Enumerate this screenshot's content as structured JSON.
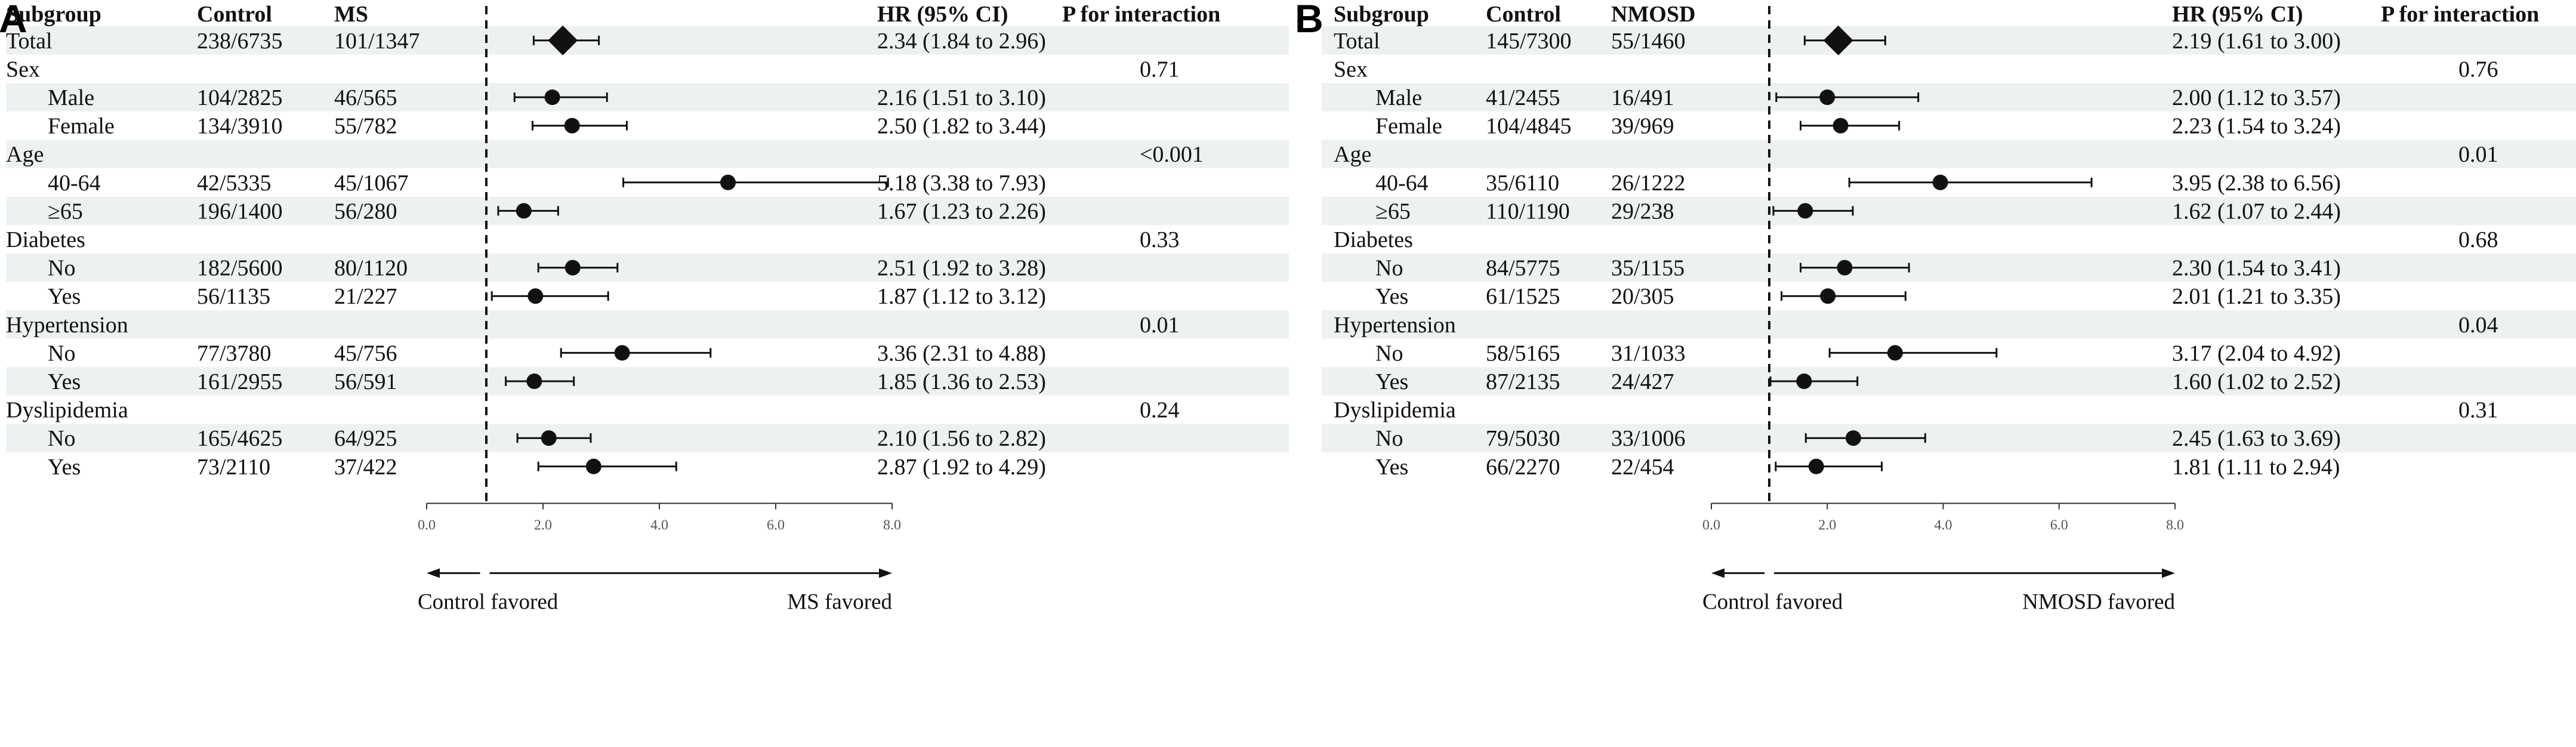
{
  "headers": [
    "Subgroup",
    "Control",
    "HR (95% CI)",
    "P for interaction"
  ],
  "chart_data": [
    {
      "type": "forest",
      "panel": "A",
      "exposure_label": "MS",
      "x_ticks": [
        "0.0",
        "2.0",
        "4.0",
        "6.0",
        "8.0"
      ],
      "xlim": [
        0,
        8
      ],
      "reference_line": 1,
      "left_label": "Control favored",
      "right_label": "MS favored",
      "rows": [
        {
          "label": "Total",
          "indent": false,
          "control": "238/6735",
          "exposure": "101/1347",
          "hr_text": "2.34 (1.84 to 2.96)",
          "hr": 2.34,
          "lo": 1.84,
          "hi": 2.96,
          "marker": "diamond",
          "p": ""
        },
        {
          "label": "Sex",
          "indent": false,
          "control": "",
          "exposure": "",
          "hr_text": "",
          "p": "0.71"
        },
        {
          "label": "Male",
          "indent": true,
          "control": "104/2825",
          "exposure": "46/565",
          "hr_text": "2.16 (1.51 to 3.10)",
          "hr": 2.16,
          "lo": 1.51,
          "hi": 3.1,
          "marker": "circle",
          "p": ""
        },
        {
          "label": "Female",
          "indent": true,
          "control": "134/3910",
          "exposure": "55/782",
          "hr_text": "2.50 (1.82 to 3.44)",
          "hr": 2.5,
          "lo": 1.82,
          "hi": 3.44,
          "marker": "circle",
          "p": ""
        },
        {
          "label": "Age",
          "indent": false,
          "control": "",
          "exposure": "",
          "hr_text": "",
          "p": "<0.001"
        },
        {
          "label": "40-64",
          "indent": true,
          "control": "42/5335",
          "exposure": "45/1067",
          "hr_text": "5.18 (3.38 to 7.93)",
          "hr": 5.18,
          "lo": 3.38,
          "hi": 7.93,
          "marker": "circle",
          "p": ""
        },
        {
          "label": "≥65",
          "indent": true,
          "control": "196/1400",
          "exposure": "56/280",
          "hr_text": "1.67 (1.23 to 2.26)",
          "hr": 1.67,
          "lo": 1.23,
          "hi": 2.26,
          "marker": "circle",
          "p": ""
        },
        {
          "label": "Diabetes",
          "indent": false,
          "control": "",
          "exposure": "",
          "hr_text": "",
          "p": "0.33"
        },
        {
          "label": "No",
          "indent": true,
          "control": "182/5600",
          "exposure": "80/1120",
          "hr_text": "2.51 (1.92 to 3.28)",
          "hr": 2.51,
          "lo": 1.92,
          "hi": 3.28,
          "marker": "circle",
          "p": ""
        },
        {
          "label": "Yes",
          "indent": true,
          "control": "56/1135",
          "exposure": "21/227",
          "hr_text": "1.87 (1.12 to 3.12)",
          "hr": 1.87,
          "lo": 1.12,
          "hi": 3.12,
          "marker": "circle",
          "p": ""
        },
        {
          "label": "Hypertension",
          "indent": false,
          "control": "",
          "exposure": "",
          "hr_text": "",
          "p": "0.01"
        },
        {
          "label": "No",
          "indent": true,
          "control": "77/3780",
          "exposure": "45/756",
          "hr_text": "3.36 (2.31 to 4.88)",
          "hr": 3.36,
          "lo": 2.31,
          "hi": 4.88,
          "marker": "circle",
          "p": ""
        },
        {
          "label": "Yes",
          "indent": true,
          "control": "161/2955",
          "exposure": "56/591",
          "hr_text": "1.85 (1.36 to 2.53)",
          "hr": 1.85,
          "lo": 1.36,
          "hi": 2.53,
          "marker": "circle",
          "p": ""
        },
        {
          "label": "Dyslipidemia",
          "indent": false,
          "control": "",
          "exposure": "",
          "hr_text": "",
          "p": "0.24"
        },
        {
          "label": "No",
          "indent": true,
          "control": "165/4625",
          "exposure": "64/925",
          "hr_text": "2.10 (1.56 to 2.82)",
          "hr": 2.1,
          "lo": 1.56,
          "hi": 2.82,
          "marker": "circle",
          "p": ""
        },
        {
          "label": "Yes",
          "indent": true,
          "control": "73/2110",
          "exposure": "37/422",
          "hr_text": "2.87 (1.92 to 4.29)",
          "hr": 2.87,
          "lo": 1.92,
          "hi": 4.29,
          "marker": "circle",
          "p": ""
        }
      ]
    },
    {
      "type": "forest",
      "panel": "B",
      "exposure_label": "NMOSD",
      "x_ticks": [
        "0.0",
        "2.0",
        "4.0",
        "6.0",
        "8.0"
      ],
      "xlim": [
        0,
        8
      ],
      "reference_line": 1,
      "left_label": "Control favored",
      "right_label": "NMOSD favored",
      "rows": [
        {
          "label": "Total",
          "indent": false,
          "control": "145/7300",
          "exposure": "55/1460",
          "hr_text": "2.19 (1.61 to 3.00)",
          "hr": 2.19,
          "lo": 1.61,
          "hi": 3.0,
          "marker": "diamond",
          "p": ""
        },
        {
          "label": "Sex",
          "indent": false,
          "control": "",
          "exposure": "",
          "hr_text": "",
          "p": "0.76"
        },
        {
          "label": "Male",
          "indent": true,
          "control": "41/2455",
          "exposure": "16/491",
          "hr_text": "2.00 (1.12 to 3.57)",
          "hr": 2.0,
          "lo": 1.12,
          "hi": 3.57,
          "marker": "circle",
          "p": ""
        },
        {
          "label": "Female",
          "indent": true,
          "control": "104/4845",
          "exposure": "39/969",
          "hr_text": "2.23 (1.54 to 3.24)",
          "hr": 2.23,
          "lo": 1.54,
          "hi": 3.24,
          "marker": "circle",
          "p": ""
        },
        {
          "label": "Age",
          "indent": false,
          "control": "",
          "exposure": "",
          "hr_text": "",
          "p": "0.01"
        },
        {
          "label": "40-64",
          "indent": true,
          "control": "35/6110",
          "exposure": "26/1222",
          "hr_text": "3.95 (2.38 to 6.56)",
          "hr": 3.95,
          "lo": 2.38,
          "hi": 6.56,
          "marker": "circle",
          "p": ""
        },
        {
          "label": "≥65",
          "indent": true,
          "control": "110/1190",
          "exposure": "29/238",
          "hr_text": "1.62 (1.07 to 2.44)",
          "hr": 1.62,
          "lo": 1.07,
          "hi": 2.44,
          "marker": "circle",
          "p": ""
        },
        {
          "label": "Diabetes",
          "indent": false,
          "control": "",
          "exposure": "",
          "hr_text": "",
          "p": "0.68"
        },
        {
          "label": "No",
          "indent": true,
          "control": "84/5775",
          "exposure": "35/1155",
          "hr_text": "2.30 (1.54 to 3.41)",
          "hr": 2.3,
          "lo": 1.54,
          "hi": 3.41,
          "marker": "circle",
          "p": ""
        },
        {
          "label": "Yes",
          "indent": true,
          "control": "61/1525",
          "exposure": "20/305",
          "hr_text": "2.01 (1.21 to 3.35)",
          "hr": 2.01,
          "lo": 1.21,
          "hi": 3.35,
          "marker": "circle",
          "p": ""
        },
        {
          "label": "Hypertension",
          "indent": false,
          "control": "",
          "exposure": "",
          "hr_text": "",
          "p": "0.04"
        },
        {
          "label": "No",
          "indent": true,
          "control": "58/5165",
          "exposure": "31/1033",
          "hr_text": "3.17 (2.04 to 4.92)",
          "hr": 3.17,
          "lo": 2.04,
          "hi": 4.92,
          "marker": "circle",
          "p": ""
        },
        {
          "label": "Yes",
          "indent": true,
          "control": "87/2135",
          "exposure": "24/427",
          "hr_text": "1.60 (1.02 to 2.52)",
          "hr": 1.6,
          "lo": 1.02,
          "hi": 2.52,
          "marker": "circle",
          "p": ""
        },
        {
          "label": "Dyslipidemia",
          "indent": false,
          "control": "",
          "exposure": "",
          "hr_text": "",
          "p": "0.31"
        },
        {
          "label": "No",
          "indent": true,
          "control": "79/5030",
          "exposure": "33/1006",
          "hr_text": "2.45 (1.63 to 3.69)",
          "hr": 2.45,
          "lo": 1.63,
          "hi": 3.69,
          "marker": "circle",
          "p": ""
        },
        {
          "label": "Yes",
          "indent": true,
          "control": "66/2270",
          "exposure": "22/454",
          "hr_text": "1.81 (1.11 to 2.94)",
          "hr": 1.81,
          "lo": 1.11,
          "hi": 2.94,
          "marker": "circle",
          "p": ""
        }
      ]
    }
  ],
  "colors": {
    "row_band": "#eef1f1",
    "marker": "#111111",
    "line": "#111111",
    "tick_text": "#555555"
  }
}
